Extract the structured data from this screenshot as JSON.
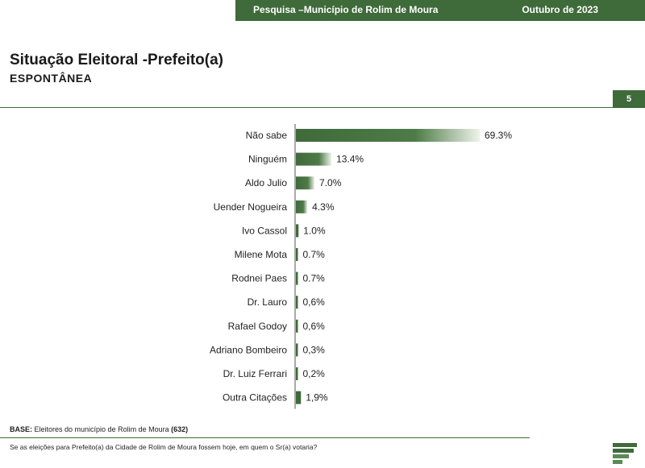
{
  "header": {
    "survey": "Pesquisa –Município de Rolim de Moura",
    "date": "Outubro de 2023"
  },
  "page": {
    "title": "Situação Eleitoral -Prefeito(a)",
    "subtitle": "ESPONTÂNEA",
    "number": "5"
  },
  "footer": {
    "base_label": "BASE:",
    "base_text": " Eleitores do município de Rolim de Moura ",
    "base_count": "(632)",
    "question": "Se as eleições para Prefeito(a) da Cidade de Rolim de Moura  fossem hoje, em quem o Sr(a) votaria?"
  },
  "colors": {
    "accent": "#3f6a3a",
    "bar_light": "#eef3ea"
  },
  "logo_icon": "stacked-bars-logo-icon",
  "chart_data": {
    "type": "bar",
    "orientation": "horizontal",
    "title": "Situação Eleitoral -Prefeito(a)",
    "subtitle": "ESPONTÂNEA",
    "categories": [
      "Não sabe",
      "Ninguém",
      "Aldo Julio",
      "Uender Nogueira",
      "Ivo  Cassol",
      "Milene Mota",
      "Rodnei Paes",
      "Dr. Lauro",
      "Rafael Godoy",
      "Adriano Bombeiro",
      "Dr. Luiz Ferrari",
      "Outra Citações"
    ],
    "values": [
      69.3,
      13.4,
      7.0,
      4.3,
      1.0,
      0.7,
      0.7,
      0.6,
      0.6,
      0.3,
      0.2,
      1.9
    ],
    "value_labels": [
      "69.3%",
      "13.4%",
      "7.0%",
      "4.3%",
      "1.0%",
      "0.7%",
      "0.7%",
      "0,6%",
      "0,6%",
      "0,3%",
      "0,2%",
      "1,9%"
    ],
    "xlim": [
      0,
      69.3
    ],
    "grid": false,
    "legend": "none"
  }
}
